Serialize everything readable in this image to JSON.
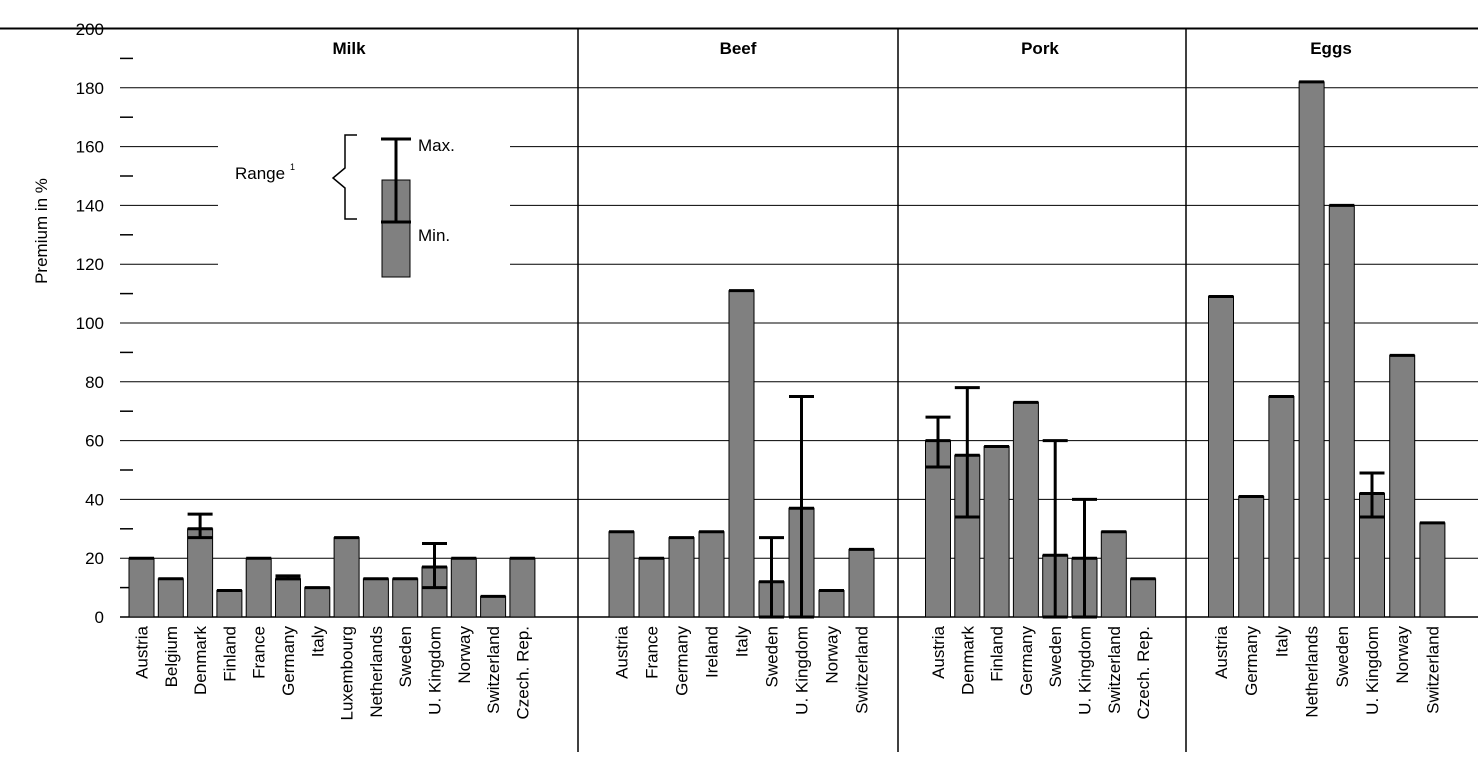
{
  "chart_data": {
    "type": "bar",
    "ylabel": "Premium in %",
    "ylim": [
      0,
      200
    ],
    "yticks": [
      "0",
      "20",
      "40",
      "60",
      "80",
      "100",
      "120",
      "140",
      "160",
      "180",
      "200"
    ],
    "grid": true,
    "bar_color": "#808080",
    "groups": [
      {
        "name": "Milk",
        "categories": [
          "Austria",
          "Belgium",
          "Denmark",
          "Finland",
          "France",
          "Germany",
          "Italy",
          "Luxembourg",
          "Netherlands",
          "Sweden",
          "U. Kingdom",
          "Norway",
          "Switzerland",
          "Czech. Rep."
        ],
        "values": [
          20,
          13,
          30,
          9,
          20,
          13,
          10,
          27,
          13,
          13,
          17,
          20,
          7,
          20
        ],
        "min": [
          20,
          13,
          27,
          9,
          20,
          13,
          10,
          27,
          13,
          13,
          10,
          20,
          7,
          20
        ],
        "max": [
          20,
          13,
          35,
          9,
          20,
          14,
          10,
          27,
          13,
          13,
          25,
          20,
          7,
          20
        ]
      },
      {
        "name": "Beef",
        "categories": [
          "Austria",
          "France",
          "Germany",
          "Ireland",
          "Italy",
          "Sweden",
          "U. Kingdom",
          "Norway",
          "Switzerland"
        ],
        "values": [
          29,
          20,
          27,
          29,
          111,
          12,
          37,
          9,
          23
        ],
        "min": [
          29,
          20,
          27,
          29,
          111,
          0,
          0,
          9,
          23
        ],
        "max": [
          29,
          20,
          27,
          29,
          111,
          27,
          75,
          9,
          23
        ]
      },
      {
        "name": "Pork",
        "categories": [
          "Austria",
          "Denmark",
          "Finland",
          "Germany",
          "Sweden",
          "U. Kingdom",
          "Switzerland",
          "Czech. Rep."
        ],
        "values": [
          60,
          55,
          58,
          73,
          21,
          20,
          29,
          13
        ],
        "min": [
          51,
          34,
          58,
          73,
          0,
          0,
          29,
          13
        ],
        "max": [
          68,
          78,
          58,
          73,
          60,
          40,
          29,
          13
        ]
      },
      {
        "name": "Eggs",
        "categories": [
          "Austria",
          "Germany",
          "Italy",
          "Netherlands",
          "Sweden",
          "U. Kingdom",
          "Norway",
          "Switzerland"
        ],
        "values": [
          109,
          41,
          75,
          182,
          140,
          42,
          89,
          32
        ],
        "min": [
          109,
          41,
          75,
          182,
          140,
          34,
          89,
          32
        ],
        "max": [
          109,
          41,
          75,
          182,
          140,
          49,
          89,
          32
        ]
      }
    ],
    "legend": {
      "range_label": "Range",
      "range_superscript": "1",
      "max_label": "Max.",
      "min_label": "Min."
    }
  }
}
